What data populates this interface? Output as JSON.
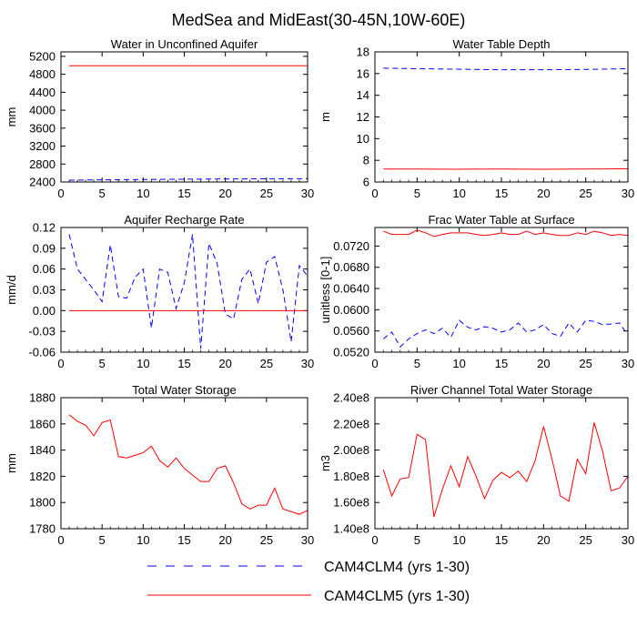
{
  "title": "MedSea and MidEast(30-45N,10W-60E)",
  "series_styles": [
    {
      "name": "CAM4CLM4",
      "color": "#0000ff",
      "dash": true
    },
    {
      "name": "CAM4CLM5",
      "color": "#ff0000",
      "dash": false
    }
  ],
  "legend": [
    {
      "label": "CAM4CLM4 (yrs 1-30)",
      "color": "#0000ff",
      "dash": true
    },
    {
      "label": "CAM4CLM5 (yrs 1-30)",
      "color": "#ff0000",
      "dash": false
    }
  ],
  "chart_data": [
    {
      "type": "line",
      "title": "Water in Unconfined Aquifer",
      "ylabel": "mm",
      "xlim": [
        0,
        30
      ],
      "ylim": [
        2400,
        5300
      ],
      "xticks": [
        0,
        5,
        10,
        15,
        20,
        25,
        30
      ],
      "yticks": [
        2400,
        2800,
        3200,
        3600,
        4000,
        4400,
        4800,
        5200
      ],
      "yticklabels": [
        "2400",
        "2800",
        "3200",
        "3600",
        "4000",
        "4400",
        "4800",
        "5200"
      ],
      "x": [
        1,
        5,
        10,
        15,
        20,
        25,
        30
      ],
      "series": [
        {
          "name": "CAM4CLM4",
          "values": [
            2440,
            2448,
            2456,
            2462,
            2468,
            2472,
            2475
          ]
        },
        {
          "name": "CAM4CLM5",
          "values": [
            4990,
            4990,
            4990,
            4990,
            4990,
            4990,
            4990
          ]
        }
      ]
    },
    {
      "type": "line",
      "title": "Water Table Depth",
      "ylabel": "m",
      "xlim": [
        0,
        30
      ],
      "ylim": [
        6,
        18
      ],
      "xticks": [
        0,
        5,
        10,
        15,
        20,
        25,
        30
      ],
      "yticks": [
        6,
        8,
        10,
        12,
        14,
        16,
        18
      ],
      "yticklabels": [
        "6",
        "8",
        "10",
        "12",
        "14",
        "16",
        "18"
      ],
      "x": [
        1,
        5,
        10,
        15,
        20,
        25,
        30
      ],
      "series": [
        {
          "name": "CAM4CLM4",
          "values": [
            16.5,
            16.45,
            16.4,
            16.35,
            16.35,
            16.38,
            16.45
          ]
        },
        {
          "name": "CAM4CLM5",
          "values": [
            7.2,
            7.2,
            7.18,
            7.2,
            7.18,
            7.2,
            7.22
          ]
        }
      ]
    },
    {
      "type": "line",
      "title": "Aquifer Recharge Rate",
      "ylabel": "mm/d",
      "xlim": [
        0,
        30
      ],
      "ylim": [
        -0.06,
        0.12
      ],
      "xticks": [
        0,
        5,
        10,
        15,
        20,
        25,
        30
      ],
      "yticks": [
        -0.06,
        -0.03,
        0.0,
        0.03,
        0.06,
        0.09,
        0.12
      ],
      "yticklabels": [
        "-0.06",
        "-0.03",
        "0.00",
        "0.03",
        "0.06",
        "0.09",
        "0.12"
      ],
      "x": [
        1,
        2,
        3,
        4,
        5,
        6,
        7,
        8,
        9,
        10,
        11,
        12,
        13,
        14,
        15,
        16,
        17,
        18,
        19,
        20,
        21,
        22,
        23,
        24,
        25,
        26,
        27,
        28,
        29,
        30
      ],
      "series": [
        {
          "name": "CAM4CLM4",
          "values": [
            0.11,
            0.06,
            0.045,
            0.03,
            0.013,
            0.095,
            0.02,
            0.018,
            0.048,
            0.06,
            -0.025,
            0.06,
            0.055,
            0.003,
            0.04,
            0.11,
            -0.055,
            0.097,
            0.068,
            -0.005,
            -0.012,
            0.045,
            0.06,
            0.01,
            0.07,
            0.078,
            0.03,
            -0.045,
            0.065,
            0.05
          ]
        },
        {
          "name": "CAM4CLM5",
          "values": [
            0,
            0,
            0,
            0,
            0,
            0,
            0,
            0,
            0,
            0,
            0,
            0,
            0,
            0,
            0,
            0,
            0,
            0,
            0,
            0,
            0,
            0,
            0,
            0,
            0,
            0,
            0,
            0,
            0,
            0
          ]
        }
      ]
    },
    {
      "type": "line",
      "title": "Frac Water Table at Surface",
      "ylabel": "unitless [0-1]",
      "xlim": [
        0,
        30
      ],
      "ylim": [
        0.052,
        0.0755
      ],
      "xticks": [
        0,
        5,
        10,
        15,
        20,
        25,
        30
      ],
      "yticks": [
        0.052,
        0.056,
        0.06,
        0.064,
        0.068,
        0.072
      ],
      "yticklabels": [
        "0.0520",
        "0.0560",
        "0.0600",
        "0.0640",
        "0.0680",
        "0.0720"
      ],
      "x": [
        1,
        2,
        3,
        4,
        5,
        6,
        7,
        8,
        9,
        10,
        11,
        12,
        13,
        14,
        15,
        16,
        17,
        18,
        19,
        20,
        21,
        22,
        23,
        24,
        25,
        26,
        27,
        28,
        29,
        30
      ],
      "series": [
        {
          "name": "CAM4CLM4",
          "values": [
            0.0545,
            0.0558,
            0.053,
            0.0545,
            0.0555,
            0.0562,
            0.0555,
            0.0565,
            0.0548,
            0.058,
            0.0567,
            0.0562,
            0.0568,
            0.0565,
            0.0558,
            0.0562,
            0.0575,
            0.0558,
            0.0562,
            0.0572,
            0.0555,
            0.055,
            0.0575,
            0.0558,
            0.058,
            0.0578,
            0.0572,
            0.0573,
            0.0575,
            0.0552
          ]
        },
        {
          "name": "CAM4CLM5",
          "values": [
            0.0748,
            0.0742,
            0.0742,
            0.0742,
            0.075,
            0.0745,
            0.0738,
            0.0742,
            0.0745,
            0.0745,
            0.0745,
            0.0742,
            0.074,
            0.0742,
            0.0745,
            0.0742,
            0.0742,
            0.0748,
            0.0742,
            0.0745,
            0.0742,
            0.074,
            0.074,
            0.0745,
            0.0742,
            0.0748,
            0.0745,
            0.074,
            0.0742,
            0.074
          ]
        }
      ]
    },
    {
      "type": "line",
      "title": "Total Water Storage",
      "ylabel": "mm",
      "xlim": [
        0,
        30
      ],
      "ylim": [
        1780,
        1880
      ],
      "xticks": [
        0,
        5,
        10,
        15,
        20,
        25,
        30
      ],
      "yticks": [
        1780,
        1800,
        1820,
        1840,
        1860,
        1880
      ],
      "yticklabels": [
        "1780",
        "1800",
        "1820",
        "1840",
        "1860",
        "1880"
      ],
      "x": [
        1,
        2,
        3,
        4,
        5,
        6,
        7,
        8,
        9,
        10,
        11,
        12,
        13,
        14,
        15,
        16,
        17,
        18,
        19,
        20,
        21,
        22,
        23,
        24,
        25,
        26,
        27,
        28,
        29,
        30
      ],
      "series": [
        {
          "name": "CAM4CLM5",
          "values": [
            1867,
            1862,
            1859,
            1851,
            1861,
            1863,
            1835,
            1834,
            1836,
            1838,
            1843,
            1832,
            1827,
            1834,
            1826,
            1821,
            1816,
            1816,
            1826,
            1828,
            1815,
            1799,
            1795,
            1798,
            1798,
            1811,
            1795,
            1793,
            1791,
            1794
          ]
        }
      ]
    },
    {
      "type": "line",
      "title": "River Channel Total Water Storage",
      "ylabel": "m3",
      "xlim": [
        0,
        30
      ],
      "ylim": [
        140000000,
        240000000
      ],
      "xticks": [
        0,
        5,
        10,
        15,
        20,
        25,
        30
      ],
      "yticks": [
        140000000,
        160000000,
        180000000,
        200000000,
        220000000,
        240000000
      ],
      "yticklabels": [
        "1.40e8",
        "1.60e8",
        "1.80e8",
        "2.00e8",
        "2.20e8",
        "2.40e8"
      ],
      "x": [
        1,
        2,
        3,
        4,
        5,
        6,
        7,
        8,
        9,
        10,
        11,
        12,
        13,
        14,
        15,
        16,
        17,
        18,
        19,
        20,
        21,
        22,
        23,
        24,
        25,
        26,
        27,
        28,
        29,
        30
      ],
      "series": [
        {
          "name": "CAM4CLM5",
          "values": [
            185000000,
            165000000,
            178000000,
            179000000,
            212000000,
            208000000,
            149000000,
            170000000,
            188000000,
            172000000,
            195000000,
            180000000,
            163000000,
            177000000,
            183000000,
            179000000,
            184000000,
            176000000,
            192000000,
            218000000,
            193000000,
            165000000,
            161000000,
            193000000,
            182000000,
            221000000,
            199000000,
            169000000,
            171000000,
            180000000
          ]
        }
      ]
    }
  ]
}
